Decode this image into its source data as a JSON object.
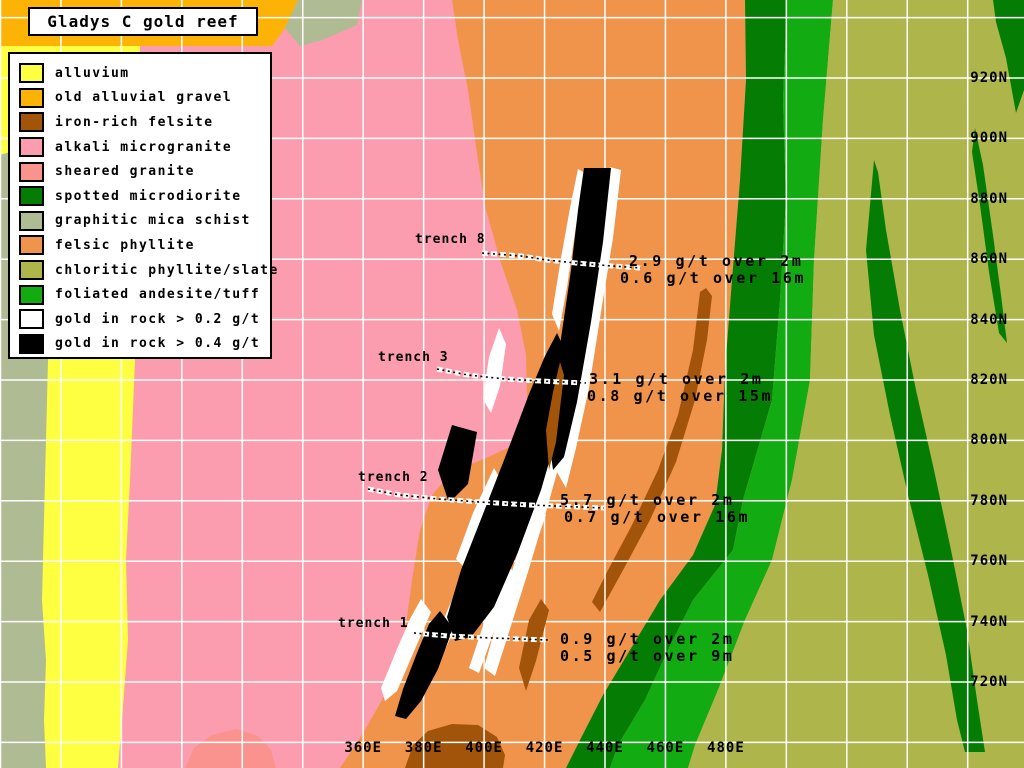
{
  "title": "Gladys C gold reef",
  "legend": {
    "items": [
      {
        "key": "alluvium",
        "label": "alluvium",
        "color": "#FFFF42"
      },
      {
        "key": "gravel",
        "label": "old alluvial gravel",
        "color": "#FCB305"
      },
      {
        "key": "felsite",
        "label": "iron-rich felsite",
        "color": "#A1540A"
      },
      {
        "key": "microgranite",
        "label": "alkali microgranite",
        "color": "#FB9DAE"
      },
      {
        "key": "granite",
        "label": "sheared granite",
        "color": "#FA938E"
      },
      {
        "key": "microdiorite",
        "label": "spotted microdiorite",
        "color": "#057D05"
      },
      {
        "key": "schist",
        "label": "graphitic mica schist",
        "color": "#AFBB92"
      },
      {
        "key": "phyllite",
        "label": "felsic phyllite",
        "color": "#F0944B"
      },
      {
        "key": "slate",
        "label": "chloritic phyllite/slate",
        "color": "#AEB54B"
      },
      {
        "key": "andesite",
        "label": "foliated andesite/tuff",
        "color": "#12AB12"
      },
      {
        "key": "gold02",
        "label": "gold in rock > 0.2 g/t",
        "color": "#FFFFFF"
      },
      {
        "key": "gold04",
        "label": "gold in rock > 0.4 g/t",
        "color": "#000000"
      }
    ]
  },
  "grid": {
    "line_color": "#FFFFFF",
    "northings": [
      "920N",
      "900N",
      "880N",
      "860N",
      "840N",
      "820N",
      "800N",
      "780N",
      "760N",
      "740N",
      "720N"
    ],
    "eastings": [
      "360E",
      "380E",
      "400E",
      "420E",
      "440E",
      "460E",
      "480E"
    ]
  },
  "trenches": [
    {
      "name": "trench 8",
      "results": [
        "2.9 g/t over 2m",
        "0.6 g/t over 16m"
      ]
    },
    {
      "name": "trench 3",
      "results": [
        "3.1 g/t over 2m",
        "0.8 g/t over 15m"
      ]
    },
    {
      "name": "trench 2",
      "results": [
        "5.7 g/t over 2m",
        "0.7 g/t over 16m"
      ]
    },
    {
      "name": "trench 1",
      "results": [
        "0.9 g/t over 2m",
        "0.5 g/t over 9m"
      ]
    }
  ]
}
